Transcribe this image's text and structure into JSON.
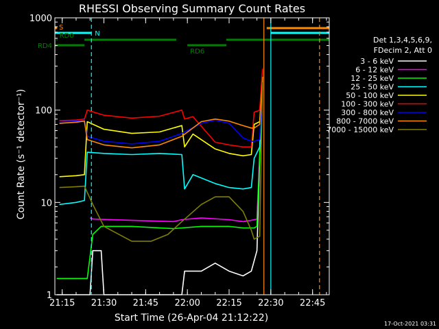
{
  "chart_data": {
    "type": "line",
    "title": "RHESSI Observing Summary Count Rates",
    "xlabel": "Start Time (26-Apr-04 21:12:22)",
    "ylabel": "Count Rate (s⁻¹ detector⁻¹)",
    "y_scale": "log",
    "ylim": [
      1,
      1000
    ],
    "xlim": [
      "21:12:22",
      "22:51:00"
    ],
    "grid": false,
    "x_ticks": [
      "21:15",
      "21:30",
      "21:45",
      "22:00",
      "22:15",
      "22:30",
      "22:45"
    ],
    "y_ticks": [
      "1",
      "10",
      "100",
      "1000"
    ],
    "legend_header": [
      "Det 1,3,4,5,6,9,",
      "FDecim 2, Att 0"
    ],
    "legend_placement": "right",
    "footer_date": "17-Oct-2021 03:31",
    "series": [
      {
        "name": "3 - 6 keV",
        "color": "#ffffff",
        "x": [
          "21:13",
          "21:21",
          "21:25",
          "21:26",
          "21:29",
          "21:30",
          "21:50",
          "21:58",
          "21:59",
          "22:05",
          "22:10",
          "22:15",
          "22:20",
          "22:23",
          "22:25",
          "22:26",
          "22:27"
        ],
        "y": [
          1,
          1,
          1,
          3,
          3,
          1,
          1,
          1,
          1.8,
          1.8,
          2.2,
          1.8,
          1.6,
          1.8,
          3,
          30,
          200
        ]
      },
      {
        "name": "6 - 12 keV",
        "color": "#ff00ff",
        "x": [
          "21:25",
          "21:26",
          "21:40",
          "21:55",
          "21:58",
          "22:05",
          "22:15",
          "22:20",
          "22:23",
          "22:25",
          "22:27"
        ],
        "y": [
          6.8,
          6.6,
          6.4,
          6.2,
          6.5,
          6.8,
          6.5,
          6.2,
          6.4,
          6.6,
          200
        ]
      },
      {
        "name": "12 - 25 keV",
        "color": "#00ff00",
        "x": [
          "21:13",
          "21:21",
          "21:24",
          "21:26",
          "21:29",
          "21:40",
          "21:55",
          "21:58",
          "22:05",
          "22:15",
          "22:20",
          "22:24",
          "22:25",
          "22:27"
        ],
        "y": [
          1.5,
          1.5,
          1.5,
          4.5,
          5.5,
          5.5,
          5.2,
          5.3,
          5.5,
          5.5,
          5.3,
          5.3,
          5.5,
          200
        ]
      },
      {
        "name": "25 - 50 keV",
        "color": "#00ffff",
        "x": [
          "21:14",
          "21:20",
          "21:23",
          "21:24",
          "21:30",
          "21:40",
          "21:50",
          "21:58",
          "21:59",
          "22:02",
          "22:10",
          "22:15",
          "22:20",
          "22:23",
          "22:24",
          "22:26",
          "22:27"
        ],
        "y": [
          9.5,
          10,
          10.5,
          35,
          34,
          33,
          34,
          33,
          14,
          20,
          16,
          14.5,
          14,
          14.5,
          30,
          40,
          200
        ]
      },
      {
        "name": "50 - 100 keV",
        "color": "#ffff00",
        "x": [
          "21:14",
          "21:20",
          "21:23",
          "21:24",
          "21:30",
          "21:40",
          "21:50",
          "21:58",
          "21:59",
          "22:02",
          "22:10",
          "22:15",
          "22:20",
          "22:23",
          "22:24",
          "22:26",
          "22:27"
        ],
        "y": [
          19,
          19.5,
          20,
          75,
          62,
          56,
          58,
          68,
          40,
          55,
          38,
          34,
          32,
          33,
          70,
          75,
          230
        ]
      },
      {
        "name": "100 - 300 keV",
        "color": "#ff0000",
        "x": [
          "21:14",
          "21:20",
          "21:23",
          "21:24",
          "21:30",
          "21:40",
          "21:50",
          "21:58",
          "21:59",
          "22:02",
          "22:10",
          "22:15",
          "22:20",
          "22:23",
          "22:24",
          "22:26",
          "22:27"
        ],
        "y": [
          77,
          78,
          80,
          100,
          88,
          82,
          86,
          100,
          80,
          85,
          45,
          42,
          40,
          40,
          95,
          100,
          280
        ]
      },
      {
        "name": "300 - 800 keV",
        "color": "#0000ff",
        "x": [
          "21:14",
          "21:20",
          "21:23",
          "21:24",
          "21:30",
          "21:40",
          "21:50",
          "21:58",
          "22:05",
          "22:10",
          "22:15",
          "22:20",
          "22:23",
          "22:24",
          "22:26",
          "22:27"
        ],
        "y": [
          75,
          76,
          78,
          52,
          46,
          43,
          46,
          56,
          72,
          78,
          72,
          50,
          46,
          46,
          48,
          210
        ]
      },
      {
        "name": "800 - 7000 keV",
        "color": "#ff8c00",
        "x": [
          "21:14",
          "21:20",
          "21:23",
          "21:24",
          "21:30",
          "21:40",
          "21:50",
          "21:58",
          "22:05",
          "22:10",
          "22:15",
          "22:20",
          "22:23",
          "22:24",
          "22:26",
          "22:27"
        ],
        "y": [
          72,
          74,
          76,
          48,
          42,
          39,
          42,
          52,
          75,
          80,
          76,
          68,
          64,
          64,
          70,
          210
        ]
      },
      {
        "name": "7000 - 15000 keV",
        "color": "#808000",
        "x": [
          "21:14",
          "21:20",
          "21:23",
          "21:26",
          "21:30",
          "21:40",
          "21:47",
          "21:53",
          "21:58",
          "22:05",
          "22:10",
          "22:15",
          "22:20",
          "22:23",
          "22:24",
          "22:26",
          "22:27"
        ],
        "y": [
          14.5,
          14.8,
          15,
          9.5,
          5.5,
          3.8,
          3.8,
          4.5,
          6.2,
          9.5,
          11.5,
          11.5,
          8,
          5,
          4,
          4.3,
          200
        ]
      }
    ],
    "flags": [
      {
        "label": "S",
        "color": "#ff8c00",
        "x_start": "21:12:22",
        "x_end": "21:13:10",
        "level": "S"
      },
      {
        "label": "N",
        "color": "#00ffff",
        "x_start": "21:12:22",
        "x_end": "21:25:30",
        "level": "N"
      },
      {
        "label": "RD0",
        "color": "#008000",
        "x_start": "21:13:00",
        "x_end": "21:13:00",
        "level": "RD0"
      },
      {
        "label": "RD4",
        "color": "#008000",
        "x_start": "21:12:22",
        "x_end": "21:23:00",
        "level": "RD4"
      },
      {
        "label": "RD6",
        "color": "#008000",
        "x_start": "22:00:00",
        "x_end": "22:14:00",
        "level": "RD6"
      },
      {
        "label": "",
        "color": "#008000",
        "x_start": "21:23:00",
        "x_end": "21:56:00",
        "level": "RD0"
      },
      {
        "label": "",
        "color": "#008000",
        "x_start": "22:14:00",
        "x_end": "22:51:00",
        "level": "RD0"
      },
      {
        "label": "",
        "color": "#ff8c00",
        "x_start": "22:28:30",
        "x_end": "22:51:00",
        "level": "S"
      },
      {
        "label": "",
        "color": "#00ffff",
        "x_start": "22:30:00",
        "x_end": "22:51:00",
        "level": "N"
      }
    ],
    "vlines": [
      {
        "x": "21:25:30",
        "color": "#00ffff",
        "style": "dashed"
      },
      {
        "x": "22:27:30",
        "color": "#ff8c00",
        "style": "solid"
      },
      {
        "x": "22:30:00",
        "color": "#00ffff",
        "style": "solid"
      },
      {
        "x": "22:47:30",
        "color": "#ff8c00",
        "style": "dashed"
      }
    ]
  }
}
